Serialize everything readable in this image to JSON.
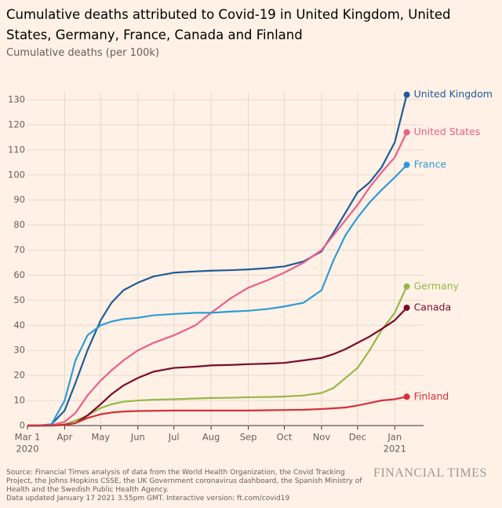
{
  "chart_data": {
    "type": "line",
    "title": "Cumulative deaths attributed to Covid-19 in United Kingdom, United States, Germany, France, Canada and Finland",
    "subtitle": "Cumulative deaths (per 100k)",
    "x": [
      0,
      10,
      20,
      31,
      40,
      50,
      61,
      70,
      80,
      92,
      105,
      122,
      140,
      153,
      170,
      184,
      200,
      214,
      230,
      245,
      255,
      265,
      275,
      285,
      295,
      306,
      316
    ],
    "xlim": [
      0,
      330
    ],
    "xticks": [
      {
        "value": 0,
        "label": "Mar 1"
      },
      {
        "value": 31,
        "label": "Apr"
      },
      {
        "value": 61,
        "label": "May"
      },
      {
        "value": 92,
        "label": "Jun"
      },
      {
        "value": 122,
        "label": "Jul"
      },
      {
        "value": 153,
        "label": "Aug"
      },
      {
        "value": 184,
        "label": "Sep"
      },
      {
        "value": 214,
        "label": "Oct"
      },
      {
        "value": 245,
        "label": "Nov"
      },
      {
        "value": 275,
        "label": "Dec"
      },
      {
        "value": 306,
        "label": "Jan"
      }
    ],
    "x_year_labels": [
      {
        "value": 0,
        "label": "2020"
      },
      {
        "value": 306,
        "label": "2021"
      }
    ],
    "ylim": [
      0,
      133
    ],
    "yticks": [
      0,
      10,
      20,
      30,
      40,
      50,
      60,
      70,
      80,
      90,
      100,
      110,
      120,
      130
    ],
    "grid": true,
    "series": [
      {
        "name": "United Kingdom",
        "color": "#1f5c99",
        "values": [
          0,
          0,
          0.5,
          6,
          17,
          30,
          42,
          49,
          54,
          57,
          59.5,
          61,
          61.5,
          61.8,
          62,
          62.3,
          62.8,
          63.5,
          65.5,
          69.5,
          77,
          85,
          93,
          97,
          103,
          113,
          132
        ]
      },
      {
        "name": "United States",
        "color": "#eb5e8d",
        "values": [
          0,
          0,
          0.1,
          1.5,
          5,
          12,
          18,
          22,
          26,
          30,
          33,
          36,
          40,
          45,
          51,
          55,
          58,
          61,
          65,
          70,
          76,
          82,
          88,
          95,
          101,
          107,
          117
        ]
      },
      {
        "name": "France",
        "color": "#2e9bd8",
        "values": [
          0,
          0,
          0.5,
          10,
          26,
          36,
          40,
          41.5,
          42.5,
          43,
          44,
          44.5,
          45,
          45,
          45.5,
          45.8,
          46.5,
          47.5,
          49,
          54,
          66,
          76,
          83,
          89,
          94,
          99,
          104
        ]
      },
      {
        "name": "Germany",
        "color": "#96b84a",
        "values": [
          0,
          0,
          0,
          0.5,
          2,
          4,
          7,
          8.5,
          9.5,
          10,
          10.3,
          10.5,
          10.8,
          11,
          11.1,
          11.3,
          11.4,
          11.6,
          12,
          13,
          15,
          19,
          23,
          30,
          38,
          45,
          55.5
        ]
      },
      {
        "name": "Canada",
        "color": "#7a0a2c",
        "values": [
          0,
          0,
          0,
          0.3,
          1,
          4,
          8.5,
          12.5,
          16,
          19,
          21.5,
          23,
          23.5,
          24,
          24.2,
          24.5,
          24.7,
          25,
          26,
          27,
          28.5,
          30.5,
          33,
          35.5,
          38.5,
          42,
          47
        ]
      },
      {
        "name": "Finland",
        "color": "#d62f3c",
        "values": [
          0,
          0,
          0,
          0.2,
          1,
          3,
          4.5,
          5.2,
          5.6,
          5.8,
          5.9,
          6,
          6,
          6,
          6,
          6,
          6.1,
          6.2,
          6.3,
          6.6,
          6.9,
          7.2,
          8,
          9,
          10,
          10.5,
          11.5
        ]
      }
    ],
    "source": "Source: Financial Times analysis of data from the World Health Organization, the Covid Tracking Project, the Johns Hopkins CSSE, the UK Government coronavirus dashboard, the Spanish Ministry of Health and the Swedish Public Health Agency.",
    "note": "Data updated January 17 2021 3.55pm GMT. Interactive version: ft.com/covid19",
    "brand": "FINANCIAL TIMES"
  }
}
